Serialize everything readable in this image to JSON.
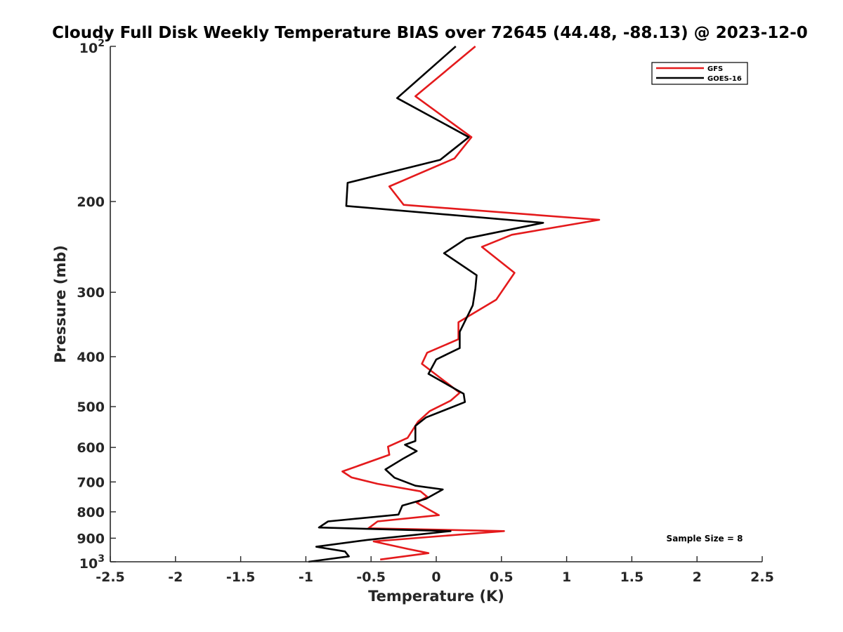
{
  "chart_data": {
    "type": "line",
    "title": "Cloudy Full Disk Weekly Temperature BIAS over 72645 (44.48, -88.13) @ 2023-12-0",
    "xlabel": "Temperature (K)",
    "ylabel": "Pressure (mb)",
    "xlim": [
      -2.5,
      2.5
    ],
    "ylim": [
      100,
      1000
    ],
    "yscale": "log",
    "y_reversed": true,
    "grid": false,
    "legend_placement": "top-right",
    "x_ticks": [
      "-2.5",
      "-2",
      "-1.5",
      "-1",
      "-0.5",
      "0",
      "0.5",
      "1",
      "1.5",
      "2",
      "2.5"
    ],
    "y_ticks": [
      {
        "value": 100,
        "base": "10",
        "exp": "2"
      },
      {
        "value": 200,
        "label": "200"
      },
      {
        "value": 300,
        "label": "300"
      },
      {
        "value": 400,
        "label": "400"
      },
      {
        "value": 500,
        "label": "500"
      },
      {
        "value": 600,
        "label": "600"
      },
      {
        "value": 700,
        "label": "700"
      },
      {
        "value": 800,
        "label": "800"
      },
      {
        "value": 900,
        "label": "900"
      },
      {
        "value": 1000,
        "base": "10",
        "exp": "3"
      }
    ],
    "annotation": "Sample Size = 8",
    "series": [
      {
        "name": "GFS",
        "color": "#e41a1c",
        "points": [
          [
            0.3,
            100
          ],
          [
            -0.16,
            125
          ],
          [
            0.27,
            150
          ],
          [
            0.14,
            165
          ],
          [
            -0.36,
            187
          ],
          [
            -0.25,
            203
          ],
          [
            1.25,
            217
          ],
          [
            0.58,
            232
          ],
          [
            0.35,
            245
          ],
          [
            0.6,
            275
          ],
          [
            0.46,
            310
          ],
          [
            0.17,
            343
          ],
          [
            0.17,
            370
          ],
          [
            -0.07,
            393
          ],
          [
            -0.11,
            413
          ],
          [
            0.18,
            470
          ],
          [
            0.11,
            487
          ],
          [
            -0.05,
            510
          ],
          [
            -0.14,
            535
          ],
          [
            -0.22,
            575
          ],
          [
            -0.37,
            598
          ],
          [
            -0.36,
            620
          ],
          [
            -0.72,
            668
          ],
          [
            -0.65,
            686
          ],
          [
            -0.45,
            706
          ],
          [
            -0.12,
            730
          ],
          [
            -0.07,
            748
          ],
          [
            -0.15,
            768
          ],
          [
            0.02,
            812
          ],
          [
            -0.45,
            835
          ],
          [
            -0.52,
            861
          ],
          [
            0.52,
            872
          ],
          [
            -0.48,
            913
          ],
          [
            -0.22,
            944
          ],
          [
            -0.06,
            962
          ],
          [
            -0.43,
            990
          ]
        ]
      },
      {
        "name": "GOES-16",
        "color": "#000000",
        "points": [
          [
            0.15,
            100
          ],
          [
            -0.3,
            126
          ],
          [
            0.25,
            150
          ],
          [
            0.03,
            166
          ],
          [
            -0.68,
            184
          ],
          [
            -0.69,
            204
          ],
          [
            0.82,
            220
          ],
          [
            0.23,
            236
          ],
          [
            0.06,
            252
          ],
          [
            0.31,
            278
          ],
          [
            0.3,
            295
          ],
          [
            0.28,
            318
          ],
          [
            0.18,
            358
          ],
          [
            0.18,
            385
          ],
          [
            0.0,
            405
          ],
          [
            -0.06,
            432
          ],
          [
            0.21,
            472
          ],
          [
            0.22,
            490
          ],
          [
            -0.08,
            525
          ],
          [
            -0.16,
            545
          ],
          [
            -0.16,
            583
          ],
          [
            -0.24,
            593
          ],
          [
            -0.15,
            610
          ],
          [
            -0.25,
            630
          ],
          [
            -0.39,
            662
          ],
          [
            -0.32,
            687
          ],
          [
            -0.16,
            712
          ],
          [
            0.05,
            724
          ],
          [
            -0.08,
            755
          ],
          [
            -0.26,
            778
          ],
          [
            -0.29,
            810
          ],
          [
            -0.83,
            835
          ],
          [
            -0.9,
            858
          ],
          [
            0.11,
            872
          ],
          [
            -0.53,
            907
          ],
          [
            -0.92,
            935
          ],
          [
            -0.7,
            955
          ],
          [
            -0.67,
            976
          ],
          [
            -0.98,
            1000
          ]
        ]
      }
    ]
  }
}
